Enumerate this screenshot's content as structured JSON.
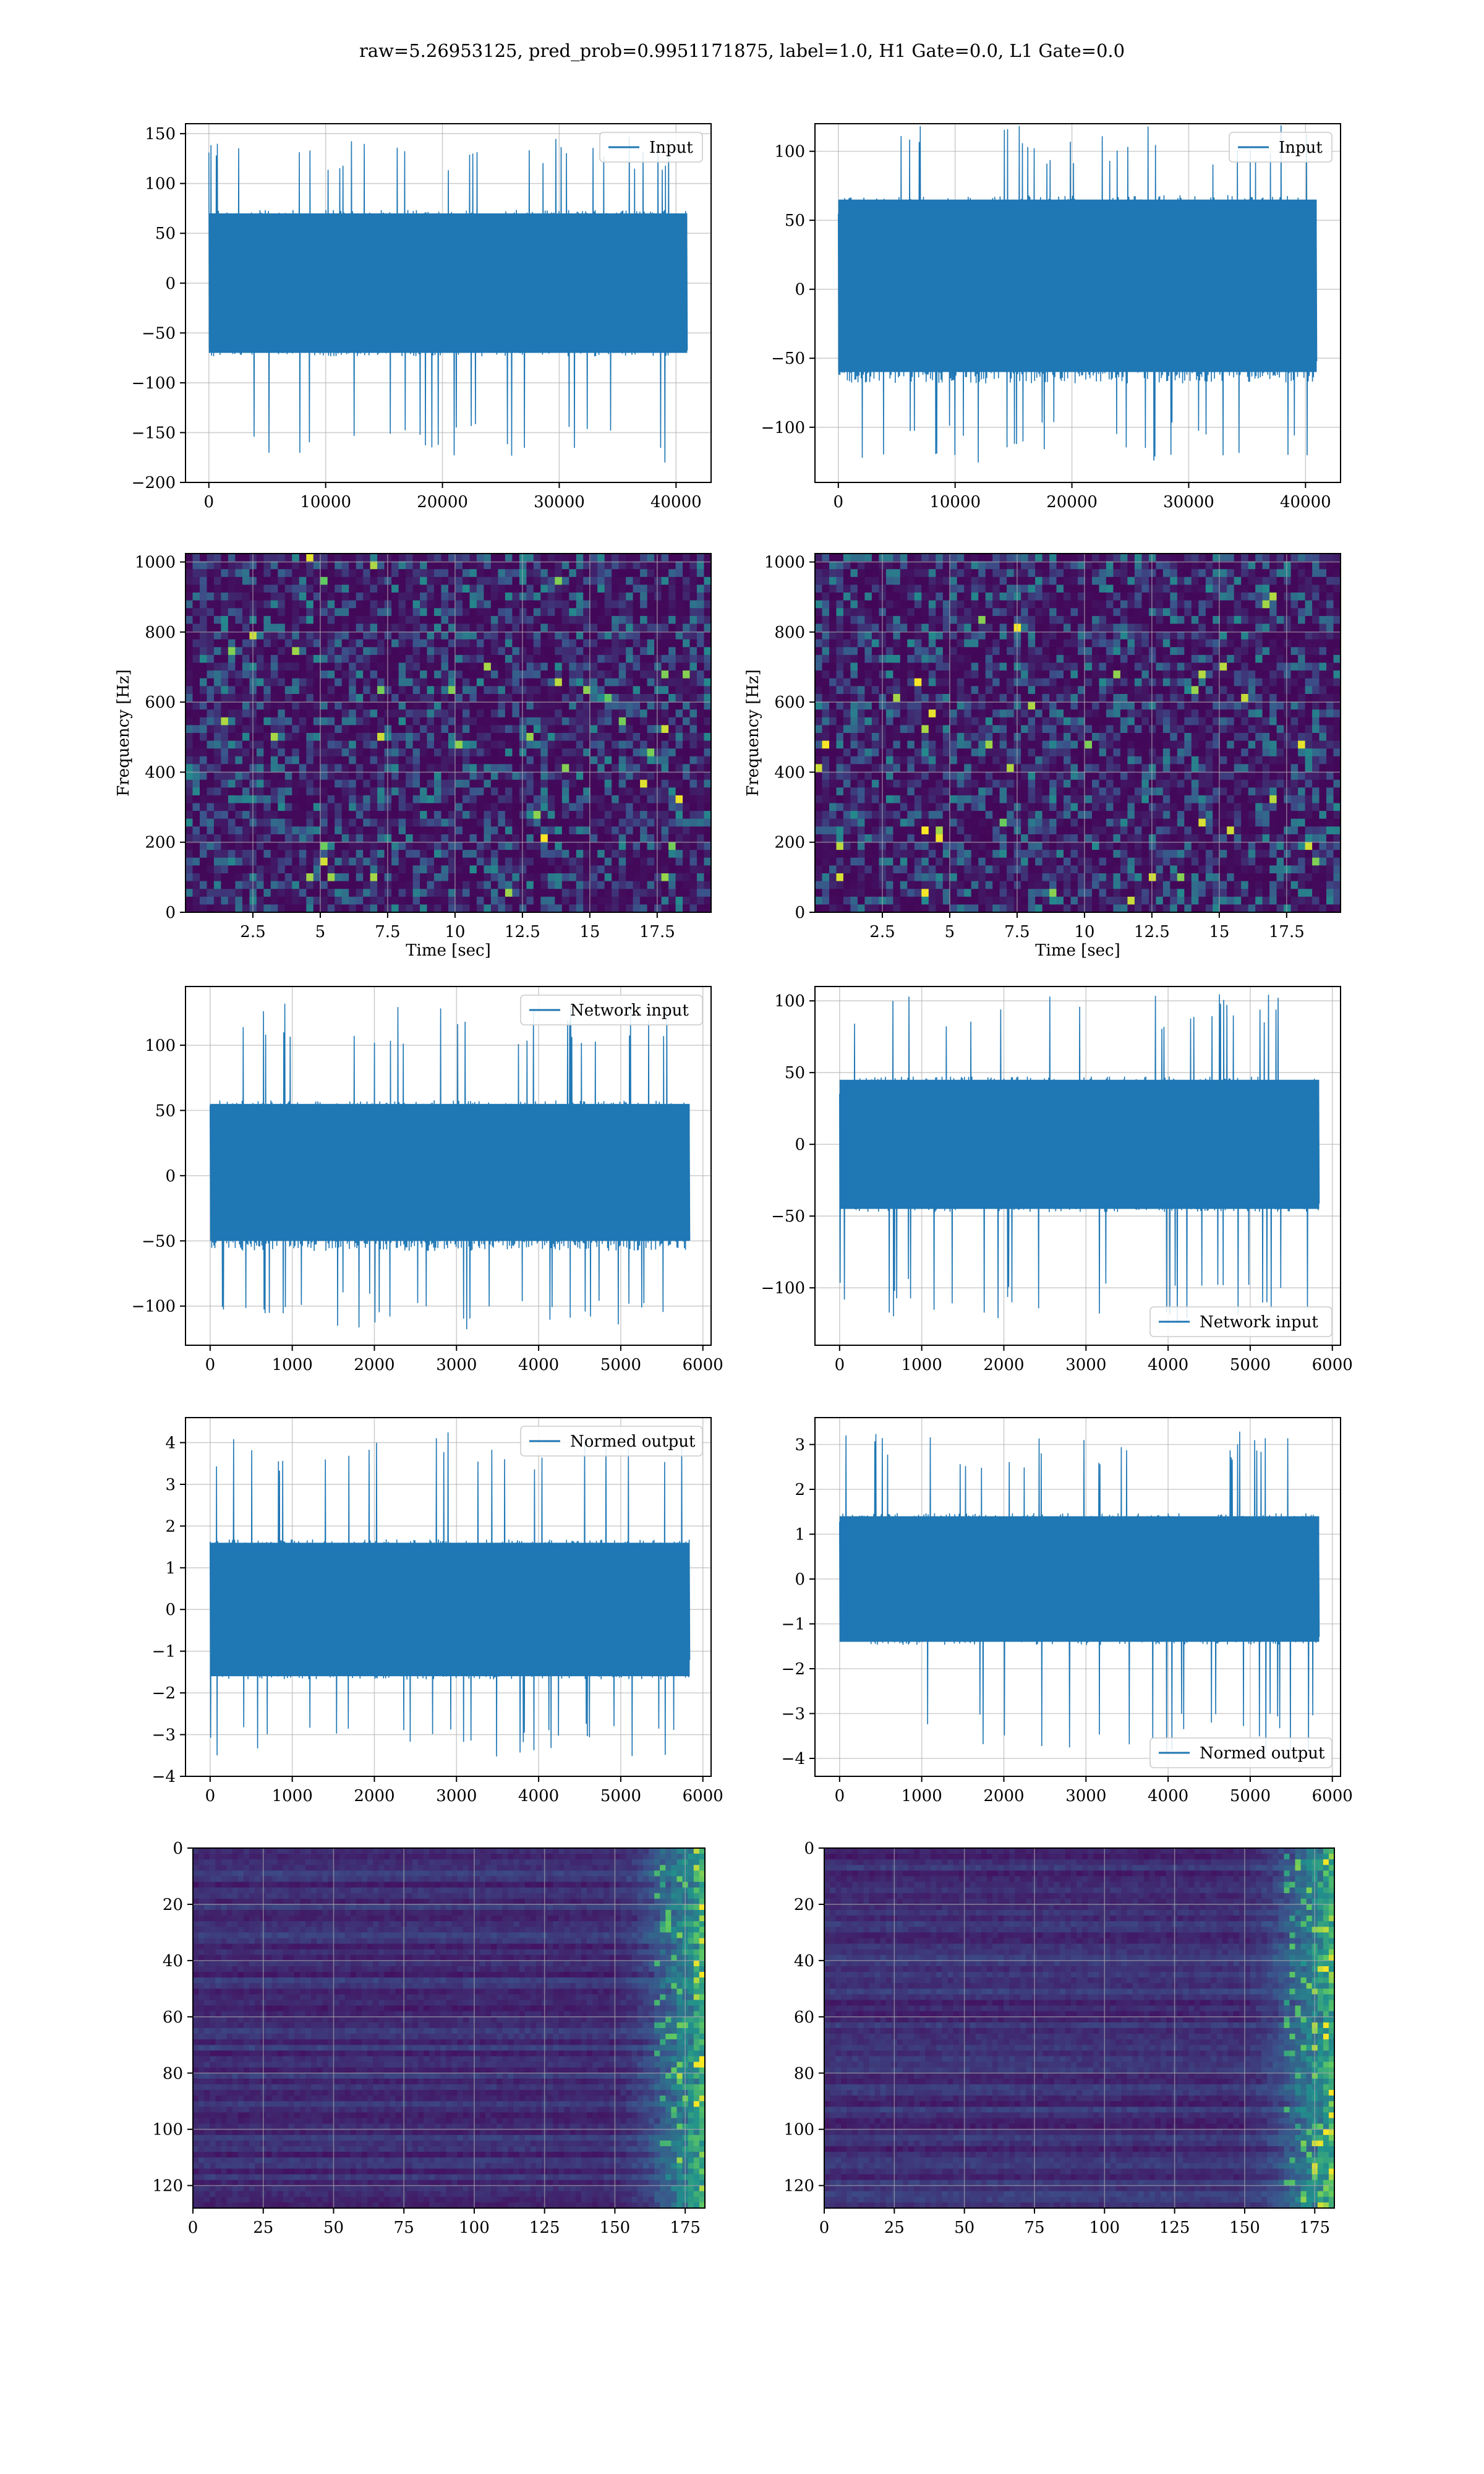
{
  "figure": {
    "title": "raw=5.26953125, pred_prob=0.9951171875, label=1.0, H1 Gate=0.0, L1 Gate=0.0"
  },
  "colors": {
    "line": "#1f77b4",
    "grid": "#b0b0b0",
    "viridis_low": "#440154",
    "viridis_mid": "#21918c",
    "viridis_high": "#fde725"
  },
  "chart_data": [
    {
      "id": "r1c1",
      "type": "line",
      "title": "",
      "xlabel": "",
      "ylabel": "",
      "legend": [
        "Input"
      ],
      "legend_loc": "upper right",
      "xlim": [
        -2000,
        43000
      ],
      "ylim": [
        -200,
        160
      ],
      "xticks": [
        0,
        10000,
        20000,
        30000,
        40000
      ],
      "yticks": [
        -200,
        -150,
        -100,
        -50,
        0,
        50,
        100,
        150
      ],
      "series": [
        {
          "name": "Input",
          "n": 40960,
          "x_range": [
            0,
            40960
          ],
          "envelope_lower": -70,
          "envelope_upper": 70,
          "min": -185,
          "max": 148
        }
      ],
      "grid": true
    },
    {
      "id": "r1c2",
      "type": "line",
      "title": "",
      "xlabel": "",
      "ylabel": "",
      "legend": [
        "Input"
      ],
      "legend_loc": "upper right",
      "xlim": [
        -2000,
        43000
      ],
      "ylim": [
        -140,
        120
      ],
      "xticks": [
        0,
        10000,
        20000,
        30000,
        40000
      ],
      "yticks": [
        -100,
        -50,
        0,
        50,
        100
      ],
      "series": [
        {
          "name": "Input",
          "n": 40960,
          "x_range": [
            0,
            40960
          ],
          "envelope_lower": -60,
          "envelope_upper": 65,
          "min": -128,
          "max": 120
        }
      ],
      "grid": true
    },
    {
      "id": "r2c1",
      "type": "heatmap",
      "title": "",
      "xlabel": "Time [sec]",
      "ylabel": "Frequency [Hz]",
      "xlim": [
        0,
        19.5
      ],
      "ylim": [
        0,
        1024
      ],
      "xticks": [
        2.5,
        5.0,
        7.5,
        10.0,
        12.5,
        15.0,
        17.5
      ],
      "yticks": [
        0,
        200,
        400,
        600,
        800,
        1000
      ],
      "colormap": "viridis",
      "grid": true
    },
    {
      "id": "r2c2",
      "type": "heatmap",
      "title": "",
      "xlabel": "Time [sec]",
      "ylabel": "Frequency [Hz]",
      "xlim": [
        0,
        19.5
      ],
      "ylim": [
        0,
        1024
      ],
      "xticks": [
        2.5,
        5.0,
        7.5,
        10.0,
        12.5,
        15.0,
        17.5
      ],
      "yticks": [
        0,
        200,
        400,
        600,
        800,
        1000
      ],
      "colormap": "viridis",
      "grid": true
    },
    {
      "id": "r3c1",
      "type": "line",
      "title": "",
      "xlabel": "",
      "ylabel": "",
      "legend": [
        "Network input"
      ],
      "legend_loc": "upper right",
      "xlim": [
        -300,
        6100
      ],
      "ylim": [
        -130,
        145
      ],
      "xticks": [
        0,
        1000,
        2000,
        3000,
        4000,
        5000,
        6000
      ],
      "yticks": [
        -100,
        -50,
        0,
        50,
        100
      ],
      "series": [
        {
          "name": "Network input",
          "n": 5840,
          "x_range": [
            0,
            5840
          ],
          "envelope_lower": -50,
          "envelope_upper": 55,
          "min": -118,
          "max": 133
        }
      ],
      "grid": true
    },
    {
      "id": "r3c2",
      "type": "line",
      "title": "",
      "xlabel": "",
      "ylabel": "",
      "legend": [
        "Network input"
      ],
      "legend_loc": "lower right",
      "xlim": [
        -300,
        6100
      ],
      "ylim": [
        -140,
        110
      ],
      "xticks": [
        0,
        1000,
        2000,
        3000,
        4000,
        5000,
        6000
      ],
      "yticks": [
        -100,
        -50,
        0,
        50,
        100
      ],
      "series": [
        {
          "name": "Network input",
          "n": 5840,
          "x_range": [
            0,
            5840
          ],
          "envelope_lower": -45,
          "envelope_upper": 45,
          "min": -125,
          "max": 105
        }
      ],
      "grid": true
    },
    {
      "id": "r4c1",
      "type": "line",
      "title": "",
      "xlabel": "",
      "ylabel": "",
      "legend": [
        "Normed output"
      ],
      "legend_loc": "upper right",
      "xlim": [
        -300,
        6100
      ],
      "ylim": [
        -4,
        4.6
      ],
      "xticks": [
        0,
        1000,
        2000,
        3000,
        4000,
        5000,
        6000
      ],
      "yticks": [
        -4,
        -3,
        -2,
        -1,
        0,
        1,
        2,
        3,
        4
      ],
      "series": [
        {
          "name": "Normed output",
          "n": 5840,
          "x_range": [
            0,
            5840
          ],
          "envelope_lower": -1.6,
          "envelope_upper": 1.6,
          "min": -3.6,
          "max": 4.3
        }
      ],
      "grid": true
    },
    {
      "id": "r4c2",
      "type": "line",
      "title": "",
      "xlabel": "",
      "ylabel": "",
      "legend": [
        "Normed output"
      ],
      "legend_loc": "lower right",
      "xlim": [
        -300,
        6100
      ],
      "ylim": [
        -4.4,
        3.6
      ],
      "xticks": [
        0,
        1000,
        2000,
        3000,
        4000,
        5000,
        6000
      ],
      "yticks": [
        -4,
        -3,
        -2,
        -1,
        0,
        1,
        2,
        3
      ],
      "series": [
        {
          "name": "Normed output",
          "n": 5840,
          "x_range": [
            0,
            5840
          ],
          "envelope_lower": -1.4,
          "envelope_upper": 1.4,
          "min": -4.0,
          "max": 3.3
        }
      ],
      "grid": true
    },
    {
      "id": "r5c1",
      "type": "heatmap",
      "title": "",
      "xlabel": "",
      "ylabel": "",
      "xlim": [
        0,
        182
      ],
      "ylim": [
        128,
        0
      ],
      "rows": 128,
      "cols": 182,
      "xticks": [
        0,
        25,
        50,
        75,
        100,
        125,
        150,
        175
      ],
      "yticks": [
        0,
        20,
        40,
        60,
        80,
        100,
        120
      ],
      "colormap": "viridis",
      "grid": true
    },
    {
      "id": "r5c2",
      "type": "heatmap",
      "title": "",
      "xlabel": "",
      "ylabel": "",
      "xlim": [
        0,
        182
      ],
      "ylim": [
        128,
        0
      ],
      "rows": 128,
      "cols": 182,
      "xticks": [
        0,
        25,
        50,
        75,
        100,
        125,
        150,
        175
      ],
      "yticks": [
        0,
        20,
        40,
        60,
        80,
        100,
        120
      ],
      "colormap": "viridis",
      "grid": true
    }
  ]
}
